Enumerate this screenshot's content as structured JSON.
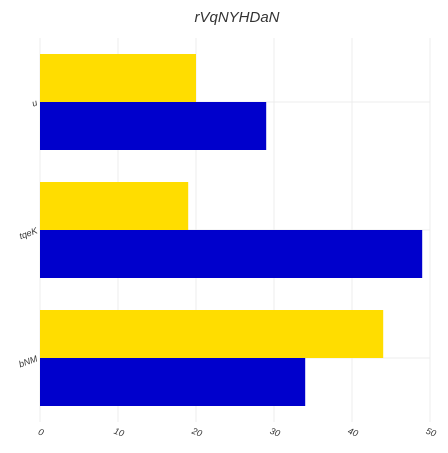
{
  "chart_data": {
    "type": "bar",
    "orientation": "horizontal",
    "title": "rVqNYHDaN",
    "xlabel": "",
    "ylabel": "",
    "categories": [
      "u",
      "tqeK",
      "bNM"
    ],
    "series": [
      {
        "color": "#ffdd00",
        "values": [
          20,
          19,
          44
        ]
      },
      {
        "color": "#0000cc",
        "values": [
          29,
          49,
          34
        ]
      }
    ],
    "xlim": [
      0,
      50
    ],
    "xticks": [
      0,
      10,
      20,
      30,
      40,
      50
    ],
    "grid": true
  }
}
